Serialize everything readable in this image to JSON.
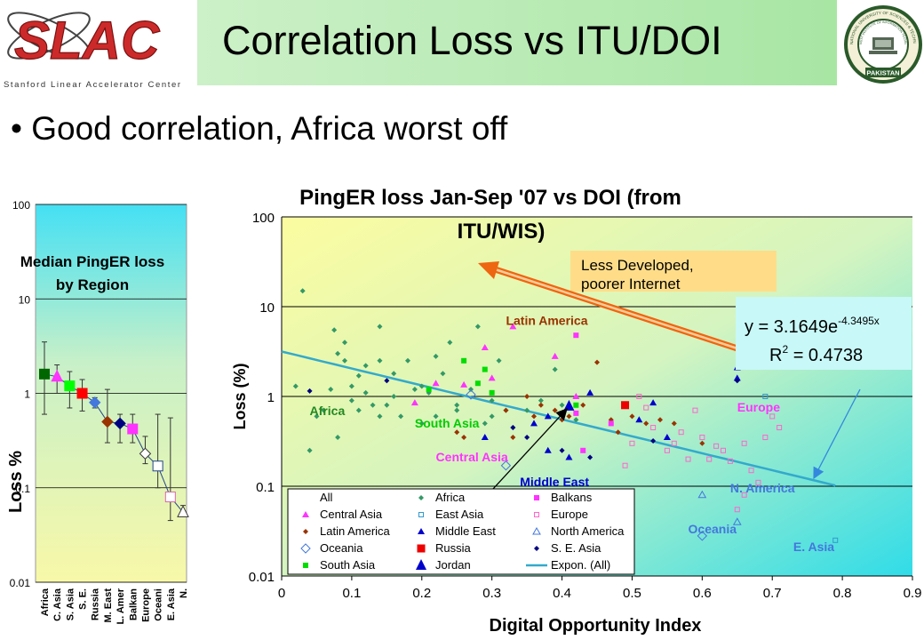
{
  "header": {
    "title": "Correlation Loss vs ITU/DOI",
    "logo_left": {
      "text": "SLAC",
      "subtitle": "Stanford Linear Accelerator Center"
    },
    "logo_right": {
      "ring_top": "NATIONAL UNIVERSITY OF SCIENCES & TECHNOLOGY",
      "ring_inner": "NUST INSTITUTE OF INFORMATION TECHNOLOGY",
      "ring_bottom": "PAKISTAN"
    }
  },
  "bullet": "Good correlation, Africa worst off",
  "colors": {
    "accent_green": "#a8e6a4",
    "slac_red": "#cc2a2a",
    "trendline": "#33aacc"
  },
  "chart_data": [
    {
      "type": "scatter",
      "title": "Median PingER loss by Region",
      "ylabel": "Loss %",
      "y_scale": "log",
      "ylim": [
        0.01,
        100
      ],
      "yticks": [
        "100",
        "10",
        "1",
        "0.1",
        "0.01"
      ],
      "categories": [
        "Africa",
        "C. Asia",
        "S. Asia",
        "S. E.",
        "Russia",
        "M. East",
        "L. Amer",
        "Balkan",
        "Europe",
        "Oceani",
        "E. Asia",
        "N."
      ],
      "values": [
        1.6,
        1.5,
        1.2,
        1.0,
        0.8,
        0.5,
        0.48,
        0.42,
        0.23,
        0.17,
        0.08,
        0.055
      ],
      "err_low": [
        0.6,
        1.0,
        0.7,
        0.65,
        0.7,
        0.3,
        0.3,
        0.3,
        0.18,
        0.1,
        0.045,
        0.05
      ],
      "err_high": [
        3.5,
        2.0,
        1.7,
        1.4,
        0.9,
        1.1,
        0.6,
        0.6,
        0.35,
        0.6,
        0.55,
        0.065
      ],
      "marker_colors": [
        "#006600",
        "#ff33ff",
        "#00ff00",
        "#ff0000",
        "#4477dd",
        "#993300",
        "#000080",
        "#ff33ff",
        "#ffffff",
        "#ffffff",
        "#ffffff",
        "#ffffff"
      ],
      "marker_edges": [
        "#006600",
        "#ff33ff",
        "#00ff00",
        "#ff0000",
        "#4477dd",
        "#993300",
        "#000080",
        "#ff33ff",
        "#333333",
        "#224488",
        "#dd66aa",
        "#333333"
      ],
      "legend": "none"
    },
    {
      "type": "scatter",
      "title": "PingER loss Jan-Sep '07 vs DOI (from ITU/WIS)",
      "xlabel": "Digital Opportunity Index",
      "ylabel": "Loss (%)",
      "x_scale": "linear",
      "y_scale": "log",
      "xlim": [
        0,
        0.9
      ],
      "ylim": [
        0.01,
        100
      ],
      "xticks": [
        "0",
        "0.1",
        "0.2",
        "0.3",
        "0.4",
        "0.5",
        "0.6",
        "0.7",
        "0.8",
        "0.9"
      ],
      "yticks": [
        "100",
        "10",
        "1",
        "0.1",
        "0.01"
      ],
      "grid": "horizontal",
      "legend_position": "bottom-left",
      "legend": [
        {
          "label": "All",
          "marker": "none",
          "color": "#000000"
        },
        {
          "label": "Central Asia",
          "marker": "triangle",
          "color": "#ff33ff"
        },
        {
          "label": "Latin America",
          "marker": "diamond-small",
          "color": "#993300"
        },
        {
          "label": "Oceania",
          "marker": "diamond-open",
          "color": "#4477dd"
        },
        {
          "label": "South Asia",
          "marker": "square-small",
          "color": "#00dd00"
        },
        {
          "label": "Africa",
          "marker": "diamond-small",
          "color": "#339966"
        },
        {
          "label": "East Asia",
          "marker": "square-open",
          "color": "#3399cc"
        },
        {
          "label": "Middle East",
          "marker": "triangle",
          "color": "#0000cc"
        },
        {
          "label": "Russia",
          "marker": "square",
          "color": "#ee0000"
        },
        {
          "label": "Jordan",
          "marker": "triangle-big",
          "color": "#0000cc"
        },
        {
          "label": "Balkans",
          "marker": "square-small",
          "color": "#ff33ff"
        },
        {
          "label": "Europe",
          "marker": "square-open",
          "color": "#ff66cc"
        },
        {
          "label": "North America",
          "marker": "triangle-open",
          "color": "#4477dd"
        },
        {
          "label": "S. E. Asia",
          "marker": "diamond-small",
          "color": "#000080"
        },
        {
          "label": "Expon. (All)",
          "marker": "line",
          "color": "#33aacc"
        }
      ],
      "series": [
        {
          "name": "Africa",
          "marker": "diamond-small",
          "color": "#339966",
          "points": [
            [
              0.03,
              15
            ],
            [
              0.02,
              1.3
            ],
            [
              0.04,
              0.25
            ],
            [
              0.05,
              0.6
            ],
            [
              0.06,
              0.7
            ],
            [
              0.07,
              1.2
            ],
            [
              0.075,
              5.5
            ],
            [
              0.08,
              3
            ],
            [
              0.08,
              0.35
            ],
            [
              0.09,
              4
            ],
            [
              0.09,
              2.5
            ],
            [
              0.1,
              1.3
            ],
            [
              0.1,
              0.9
            ],
            [
              0.11,
              1.7
            ],
            [
              0.11,
              0.7
            ],
            [
              0.12,
              2.2
            ],
            [
              0.12,
              1.1
            ],
            [
              0.13,
              0.8
            ],
            [
              0.14,
              0.6
            ],
            [
              0.14,
              6
            ],
            [
              0.14,
              2.5
            ],
            [
              0.15,
              0.8
            ],
            [
              0.16,
              1.8
            ],
            [
              0.16,
              1.0
            ],
            [
              0.17,
              0.6
            ],
            [
              0.18,
              2.5
            ],
            [
              0.19,
              1.2
            ],
            [
              0.2,
              1.3
            ],
            [
              0.2,
              0.5
            ],
            [
              0.21,
              1.1
            ],
            [
              0.22,
              0.6
            ],
            [
              0.22,
              2.8
            ],
            [
              0.23,
              1.8
            ],
            [
              0.24,
              4
            ],
            [
              0.25,
              0.8
            ],
            [
              0.25,
              0.7
            ],
            [
              0.27,
              1.2
            ],
            [
              0.28,
              6
            ],
            [
              0.29,
              0.5
            ],
            [
              0.3,
              0.9
            ],
            [
              0.3,
              0.6
            ],
            [
              0.31,
              2.5
            ],
            [
              0.32,
              0.7
            ],
            [
              0.33,
              0.45
            ],
            [
              0.35,
              0.7
            ],
            [
              0.37,
              0.9
            ],
            [
              0.39,
              2.0
            ],
            [
              0.4,
              0.8
            ],
            [
              0.42,
              0.55
            ]
          ]
        },
        {
          "name": "Central Asia",
          "marker": "triangle",
          "color": "#ff33ff",
          "points": [
            [
              0.19,
              0.85
            ],
            [
              0.22,
              1.4
            ],
            [
              0.26,
              1.35
            ],
            [
              0.29,
              3.5
            ],
            [
              0.3,
              1.6
            ],
            [
              0.33,
              6
            ],
            [
              0.39,
              2.8
            ],
            [
              0.42,
              1.0
            ]
          ]
        },
        {
          "name": "Latin America",
          "marker": "diamond-small",
          "color": "#993300",
          "points": [
            [
              0.25,
              0.4
            ],
            [
              0.26,
              0.35
            ],
            [
              0.32,
              0.7
            ],
            [
              0.33,
              0.35
            ],
            [
              0.35,
              1.0
            ],
            [
              0.36,
              0.6
            ],
            [
              0.37,
              0.8
            ],
            [
              0.39,
              0.7
            ],
            [
              0.4,
              0.55
            ],
            [
              0.41,
              0.6
            ],
            [
              0.43,
              0.8
            ],
            [
              0.45,
              2.4
            ],
            [
              0.47,
              0.55
            ],
            [
              0.48,
              0.4
            ],
            [
              0.5,
              0.6
            ],
            [
              0.52,
              0.5
            ],
            [
              0.54,
              0.55
            ],
            [
              0.56,
              0.5
            ],
            [
              0.6,
              0.3
            ]
          ]
        },
        {
          "name": "Oceania",
          "marker": "diamond-open",
          "color": "#4477dd",
          "points": [
            [
              0.27,
              1.05
            ],
            [
              0.32,
              0.17
            ],
            [
              0.6,
              0.028
            ]
          ]
        },
        {
          "name": "South Asia",
          "marker": "square-small",
          "color": "#00dd00",
          "points": [
            [
              0.21,
              1.2
            ],
            [
              0.26,
              2.5
            ],
            [
              0.28,
              1.4
            ],
            [
              0.29,
              2.0
            ],
            [
              0.3,
              1.1
            ],
            [
              0.42,
              0.8
            ]
          ]
        },
        {
          "name": "East Asia",
          "marker": "square-open",
          "color": "#3399cc",
          "points": [
            [
              0.69,
              1.0
            ],
            [
              0.79,
              0.025
            ]
          ]
        },
        {
          "name": "Middle East",
          "marker": "triangle",
          "color": "#0000cc",
          "points": [
            [
              0.29,
              0.35
            ],
            [
              0.36,
              0.5
            ],
            [
              0.38,
              0.6
            ],
            [
              0.38,
              0.25
            ],
            [
              0.41,
              0.21
            ],
            [
              0.44,
              1.1
            ],
            [
              0.51,
              0.55
            ],
            [
              0.53,
              0.85
            ],
            [
              0.55,
              0.35
            ],
            [
              0.65,
              2.1
            ],
            [
              0.65,
              1.6
            ]
          ]
        },
        {
          "name": "Russia",
          "marker": "square",
          "color": "#ee0000",
          "points": [
            [
              0.49,
              0.8
            ]
          ]
        },
        {
          "name": "Jordan",
          "marker": "triangle-big",
          "color": "#0000cc",
          "points": [
            [
              0.41,
              0.78
            ]
          ]
        },
        {
          "name": "Balkans",
          "marker": "square-small",
          "color": "#ff33ff",
          "points": [
            [
              0.42,
              4.8
            ],
            [
              0.42,
              0.65
            ],
            [
              0.47,
              0.5
            ],
            [
              0.43,
              0.25
            ]
          ]
        },
        {
          "name": "Europe",
          "marker": "square-open",
          "color": "#ff66cc",
          "points": [
            [
              0.49,
              0.17
            ],
            [
              0.5,
              0.3
            ],
            [
              0.51,
              1.0
            ],
            [
              0.52,
              0.75
            ],
            [
              0.53,
              0.45
            ],
            [
              0.55,
              0.25
            ],
            [
              0.56,
              0.3
            ],
            [
              0.57,
              0.4
            ],
            [
              0.58,
              0.2
            ],
            [
              0.59,
              0.7
            ],
            [
              0.6,
              0.35
            ],
            [
              0.61,
              0.2
            ],
            [
              0.62,
              0.28
            ],
            [
              0.63,
              0.25
            ],
            [
              0.64,
              0.19
            ],
            [
              0.65,
              0.055
            ],
            [
              0.66,
              0.3
            ],
            [
              0.67,
              0.15
            ],
            [
              0.68,
              0.11
            ],
            [
              0.69,
              0.35
            ],
            [
              0.7,
              0.6
            ],
            [
              0.71,
              0.45
            ],
            [
              0.66,
              0.08
            ]
          ]
        },
        {
          "name": "North America",
          "marker": "triangle-open",
          "color": "#4477dd",
          "points": [
            [
              0.65,
              0.04
            ],
            [
              0.6,
              0.08
            ]
          ]
        },
        {
          "name": "S. E. Asia",
          "marker": "diamond-small",
          "color": "#000080",
          "points": [
            [
              0.04,
              1.15
            ],
            [
              0.15,
              1.5
            ],
            [
              0.33,
              0.45
            ],
            [
              0.35,
              0.35
            ],
            [
              0.4,
              0.25
            ],
            [
              0.44,
              0.21
            ],
            [
              0.53,
              0.32
            ],
            [
              0.65,
              1.5
            ]
          ]
        }
      ],
      "trendline": {
        "name": "Expon. (All)",
        "equation": "y = 3.1649e",
        "exponent": "-4.3495x",
        "r2_prefix": "R",
        "r2_sup": "2",
        "r2_value": " = 0.4738",
        "a": 3.1649,
        "b": -4.3495,
        "x_range": [
          0,
          0.79
        ]
      },
      "region_labels": [
        {
          "text": "Latin America",
          "x": 0.32,
          "y": 6.3,
          "color": "#993300"
        },
        {
          "text": "Africa",
          "x": 0.04,
          "y": 0.62,
          "color": "#228822"
        },
        {
          "text": "South Asia",
          "x": 0.19,
          "y": 0.45,
          "color": "#00cc00"
        },
        {
          "text": "Central Asia",
          "x": 0.22,
          "y": 0.19,
          "color": "#ff33ff"
        },
        {
          "text": "Middle East",
          "x": 0.34,
          "y": 0.1,
          "color": "#0000cc"
        },
        {
          "text": "Europe",
          "x": 0.65,
          "y": 0.68,
          "color": "#ff33ff"
        },
        {
          "text": "N. America",
          "x": 0.64,
          "y": 0.085,
          "color": "#4477dd"
        },
        {
          "text": "Oceania",
          "x": 0.58,
          "y": 0.03,
          "color": "#4477dd"
        },
        {
          "text": "E. Asia",
          "x": 0.73,
          "y": 0.019,
          "color": "#4477dd"
        }
      ],
      "callout": {
        "line1": "Less Developed,",
        "line2": "poorer Internet"
      }
    }
  ]
}
